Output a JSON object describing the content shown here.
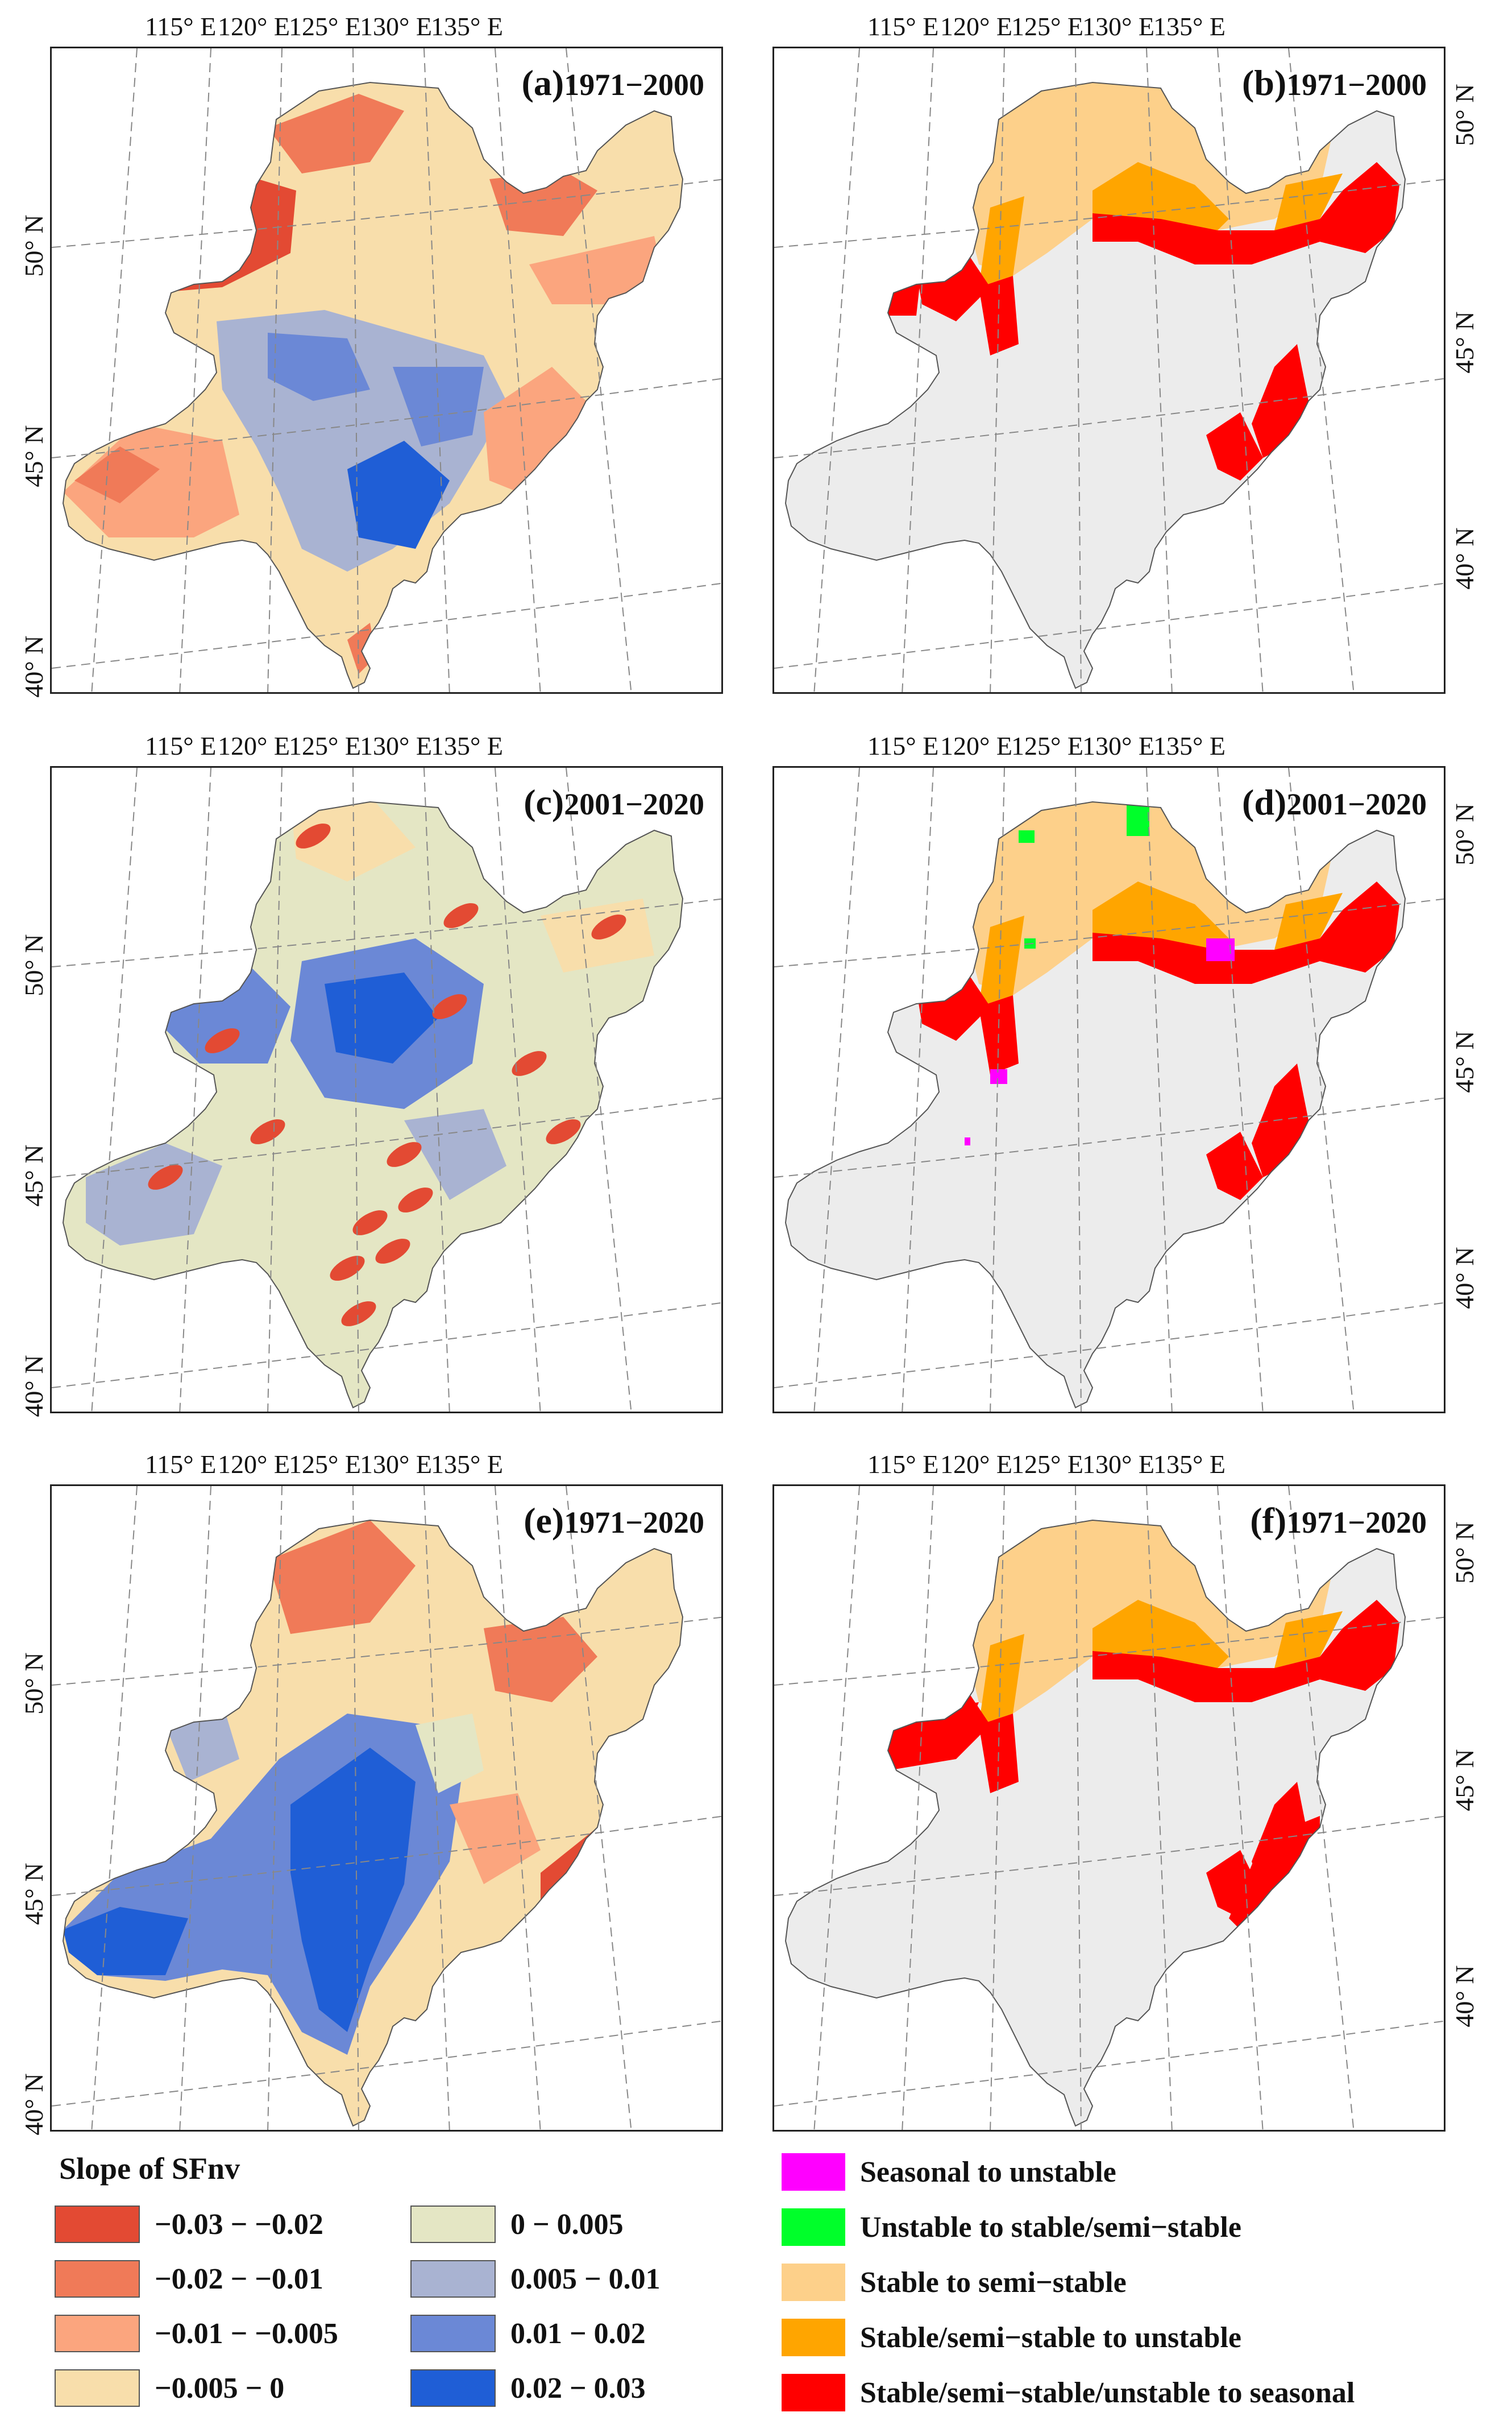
{
  "lon_labels": [
    "115° E",
    "120° E",
    "125° E",
    "130° E",
    "135° E"
  ],
  "lat_labels": [
    "50° N",
    "45° N",
    "40° N"
  ],
  "panels": [
    {
      "id": "a",
      "label": "(a)",
      "period": "1971−2000",
      "type": "slope"
    },
    {
      "id": "b",
      "label": "(b)",
      "period": "1971−2000",
      "type": "change"
    },
    {
      "id": "c",
      "label": "(c)",
      "period": "2001−2020",
      "type": "slope"
    },
    {
      "id": "d",
      "label": "(d)",
      "period": "2001−2020",
      "type": "change"
    },
    {
      "id": "e",
      "label": "(e)",
      "period": "1971−2020",
      "type": "slope"
    },
    {
      "id": "f",
      "label": "(f)",
      "period": "1971−2020",
      "type": "change"
    }
  ],
  "slope_legend": {
    "title": "Slope of SFnv",
    "items": [
      {
        "label": "−0.03 − −0.02",
        "color": "#e34a33"
      },
      {
        "label": "−0.02 − −0.01",
        "color": "#f07a58"
      },
      {
        "label": "−0.01 − −0.005",
        "color": "#fba57e"
      },
      {
        "label": "−0.005 − 0",
        "color": "#f8deab"
      },
      {
        "label": "0 − 0.005",
        "color": "#e4e6c4"
      },
      {
        "label": "0.005 − 0.01",
        "color": "#a9b3d2"
      },
      {
        "label": "0.01 − 0.02",
        "color": "#6b88d6"
      },
      {
        "label": "0.02 − 0.03",
        "color": "#1f5ed6"
      }
    ]
  },
  "change_legend": {
    "items": [
      {
        "label": "Seasonal to unstable",
        "color": "#ff00ff"
      },
      {
        "label": "Unstable to stable/semi−stable",
        "color": "#00ff2a"
      },
      {
        "label": "Stable to semi−stable",
        "color": "#fdd08a"
      },
      {
        "label": "Stable/semi−stable to unstable",
        "color": "#ffa500"
      },
      {
        "label": "Stable/semi−stable/unstable to seasonal",
        "color": "#ff0000"
      }
    ],
    "background_color": "#ececec"
  }
}
